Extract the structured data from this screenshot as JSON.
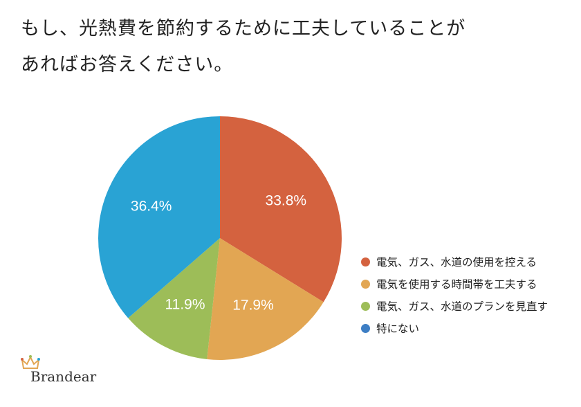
{
  "question": {
    "line1": "もし、光熱費を節約するために工夫していることが",
    "line2": "あればお答えください。"
  },
  "chart_data": {
    "type": "pie",
    "categories": [
      "電気、ガス、水道の使用を控える",
      "電気を使用する時間帯を工夫する",
      "電気、ガス、水道のプランを見直す",
      "特にない"
    ],
    "values": [
      33.8,
      17.9,
      11.9,
      36.4
    ],
    "labels": [
      "33.8%",
      "17.9%",
      "11.9%",
      "36.4%"
    ],
    "colors": [
      "#d4623f",
      "#e2a653",
      "#9dbd58",
      "#29a3d4"
    ],
    "legend_position": "right",
    "start": "top, clockwise"
  },
  "legend": {
    "items": [
      {
        "label": "電気、ガス、水道の使用を控える",
        "color": "#d4623f"
      },
      {
        "label": "電気を使用する時間帯を工夫する",
        "color": "#e2a653"
      },
      {
        "label": "電気、ガス、水道のプランを見直す",
        "color": "#9dbd58"
      },
      {
        "label": "特にない",
        "color": "#3d7ec4"
      }
    ]
  },
  "brand": {
    "name": "Brandear",
    "icon": "crown-icon"
  }
}
